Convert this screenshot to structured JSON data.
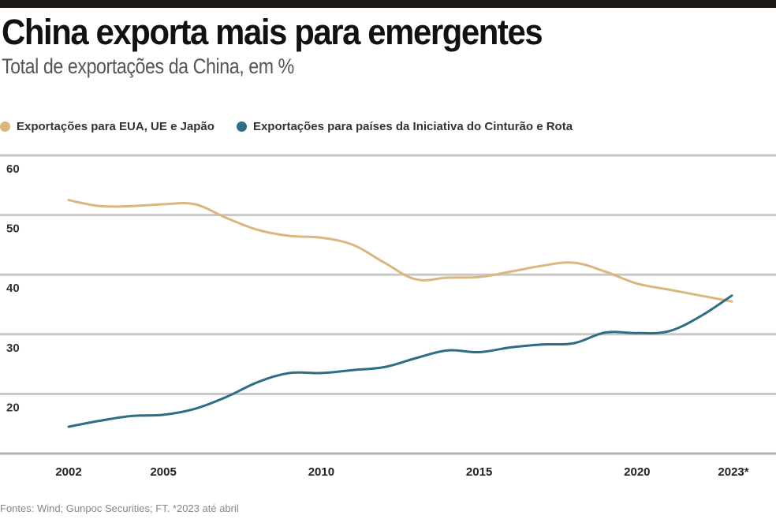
{
  "header": {
    "title": "China exporta mais para emergentes",
    "subtitle": "Total de exportações da China, em %"
  },
  "footer": {
    "source": "Fontes: Wind; Gunpoc Securities; FT. *2023 até abril"
  },
  "chart_data": {
    "type": "line",
    "title": "China exporta mais para emergentes",
    "subtitle": "Total de exportações da China, em %",
    "xlabel": "",
    "ylabel": "%",
    "ylim": [
      10,
      60
    ],
    "xlim": [
      2002,
      2023
    ],
    "grid": true,
    "legend_position": "top-left",
    "y_ticks": [
      {
        "value": 60,
        "label": "60"
      },
      {
        "value": 50,
        "label": "50"
      },
      {
        "value": 40,
        "label": "40"
      },
      {
        "value": 30,
        "label": "30"
      },
      {
        "value": 20,
        "label": "20"
      }
    ],
    "x_ticks": [
      {
        "value": 2002,
        "label": "2002"
      },
      {
        "value": 2005,
        "label": "2005"
      },
      {
        "value": 2010,
        "label": "2010"
      },
      {
        "value": 2015,
        "label": "2015"
      },
      {
        "value": 2020,
        "label": "2020"
      },
      {
        "value": 2023,
        "label": "2023*"
      }
    ],
    "x": [
      2002,
      2003,
      2004,
      2005,
      2006,
      2007,
      2008,
      2009,
      2010,
      2011,
      2012,
      2013,
      2014,
      2015,
      2016,
      2017,
      2018,
      2019,
      2020,
      2021,
      2022,
      2023
    ],
    "series": [
      {
        "name": "Exportações para EUA, UE e Japão",
        "color": "#d9b77e",
        "values": [
          52.5,
          51.5,
          51.5,
          51.8,
          51.8,
          49.5,
          47.5,
          46.5,
          46.2,
          45.0,
          42.0,
          39.2,
          39.5,
          39.6,
          40.5,
          41.5,
          42.0,
          40.5,
          38.5,
          37.5,
          36.5,
          35.5
        ]
      },
      {
        "name": "Exportações para países da Iniciativa do Cinturão e Rota",
        "color": "#2d6e86",
        "values": [
          14.5,
          15.5,
          16.3,
          16.5,
          17.5,
          19.5,
          22.0,
          23.5,
          23.5,
          24.0,
          24.5,
          26.0,
          27.3,
          27.0,
          27.8,
          28.3,
          28.5,
          30.3,
          30.2,
          30.5,
          33.0,
          36.5
        ]
      }
    ]
  },
  "colors": {
    "top_rule": "#1b1816",
    "gridline": "#c8c8c8",
    "baseline": "#b0b0b0"
  }
}
